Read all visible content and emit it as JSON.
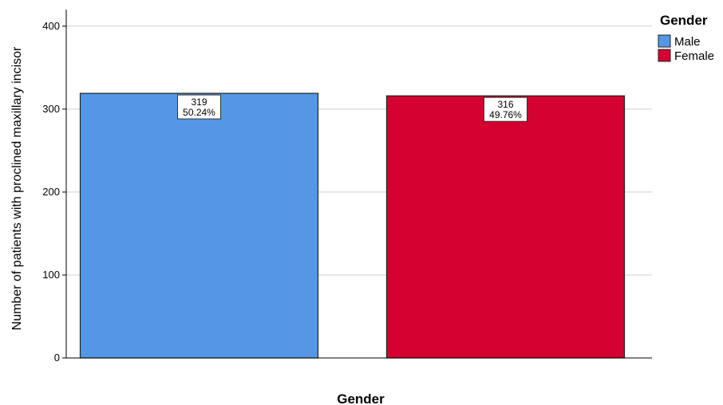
{
  "chart_data": {
    "type": "bar",
    "categories": [
      "Male",
      "Female"
    ],
    "values": [
      319,
      316
    ],
    "data_labels": [
      {
        "count": "319",
        "percent": "50.24%"
      },
      {
        "count": "316",
        "percent": "49.76%"
      }
    ],
    "xlabel": "Gender",
    "ylabel": "Number of patients with proclined maxillary incisor",
    "ylim": [
      0,
      420
    ],
    "yticks": [
      0,
      100,
      200,
      300,
      400
    ],
    "grid": true,
    "legend": {
      "title": "Gender",
      "placement": "top-right",
      "entries": [
        "Male",
        "Female"
      ]
    },
    "colors": [
      "#5597e6",
      "#d4002f"
    ]
  }
}
